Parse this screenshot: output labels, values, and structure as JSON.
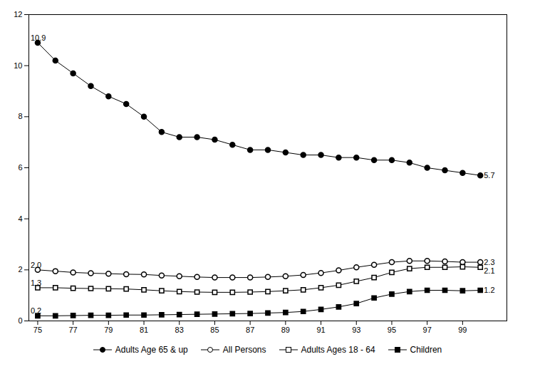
{
  "chart_data": {
    "type": "line",
    "x": [
      75,
      76,
      77,
      78,
      79,
      80,
      81,
      82,
      83,
      84,
      85,
      86,
      87,
      88,
      89,
      90,
      91,
      92,
      93,
      94,
      95,
      96,
      97,
      98,
      99,
      100
    ],
    "series": [
      {
        "name": "Adults Age 65 & up",
        "color": "#000000",
        "marker": "filled_circle",
        "values": [
          10.9,
          10.2,
          9.7,
          9.2,
          8.8,
          8.5,
          8.0,
          7.4,
          7.2,
          7.2,
          7.1,
          6.9,
          6.7,
          6.7,
          6.6,
          6.5,
          6.5,
          6.4,
          6.4,
          6.3,
          6.3,
          6.2,
          6.0,
          5.9,
          5.8,
          5.7
        ]
      },
      {
        "name": "All Persons",
        "color": "#000000",
        "marker": "open_circle",
        "values": [
          2.0,
          1.95,
          1.9,
          1.87,
          1.85,
          1.83,
          1.82,
          1.78,
          1.75,
          1.72,
          1.7,
          1.7,
          1.7,
          1.72,
          1.75,
          1.8,
          1.88,
          1.98,
          2.1,
          2.2,
          2.3,
          2.35,
          2.35,
          2.33,
          2.3,
          2.3
        ]
      },
      {
        "name": "Adults Ages 18 - 64",
        "color": "#000000",
        "marker": "open_square",
        "values": [
          1.3,
          1.3,
          1.28,
          1.27,
          1.26,
          1.25,
          1.22,
          1.18,
          1.15,
          1.13,
          1.12,
          1.12,
          1.13,
          1.15,
          1.18,
          1.22,
          1.3,
          1.4,
          1.55,
          1.7,
          1.9,
          2.05,
          2.1,
          2.1,
          2.12,
          2.1
        ]
      },
      {
        "name": "Children",
        "color": "#000000",
        "marker": "filled_square",
        "values": [
          0.2,
          0.2,
          0.21,
          0.22,
          0.22,
          0.23,
          0.23,
          0.24,
          0.25,
          0.26,
          0.27,
          0.28,
          0.29,
          0.31,
          0.33,
          0.37,
          0.45,
          0.55,
          0.68,
          0.9,
          1.05,
          1.15,
          1.2,
          1.2,
          1.18,
          1.2
        ]
      }
    ],
    "xlim": [
      74.5,
      101.5
    ],
    "xticks": [
      75,
      77,
      79,
      81,
      83,
      85,
      87,
      89,
      91,
      93,
      95,
      97,
      99
    ],
    "ylim": [
      0,
      12
    ],
    "yticks": [
      0,
      2,
      4,
      6,
      8,
      10,
      12
    ],
    "annotations": [
      {
        "text": "10.9",
        "x": 75,
        "y": 10.9
      },
      {
        "text": "2.0",
        "x": 75,
        "y": 2.0
      },
      {
        "text": "1.3",
        "x": 75,
        "y": 1.3
      },
      {
        "text": "0.2",
        "x": 75,
        "y": 0.2
      },
      {
        "text": "5.7",
        "x": 100,
        "y": 5.7
      },
      {
        "text": "2.3",
        "x": 100,
        "y": 2.3
      },
      {
        "text": "2.1",
        "x": 100,
        "y": 2.1
      },
      {
        "text": "1.2",
        "x": 100,
        "y": 1.2
      }
    ],
    "grid": false,
    "legend": "bottom"
  }
}
